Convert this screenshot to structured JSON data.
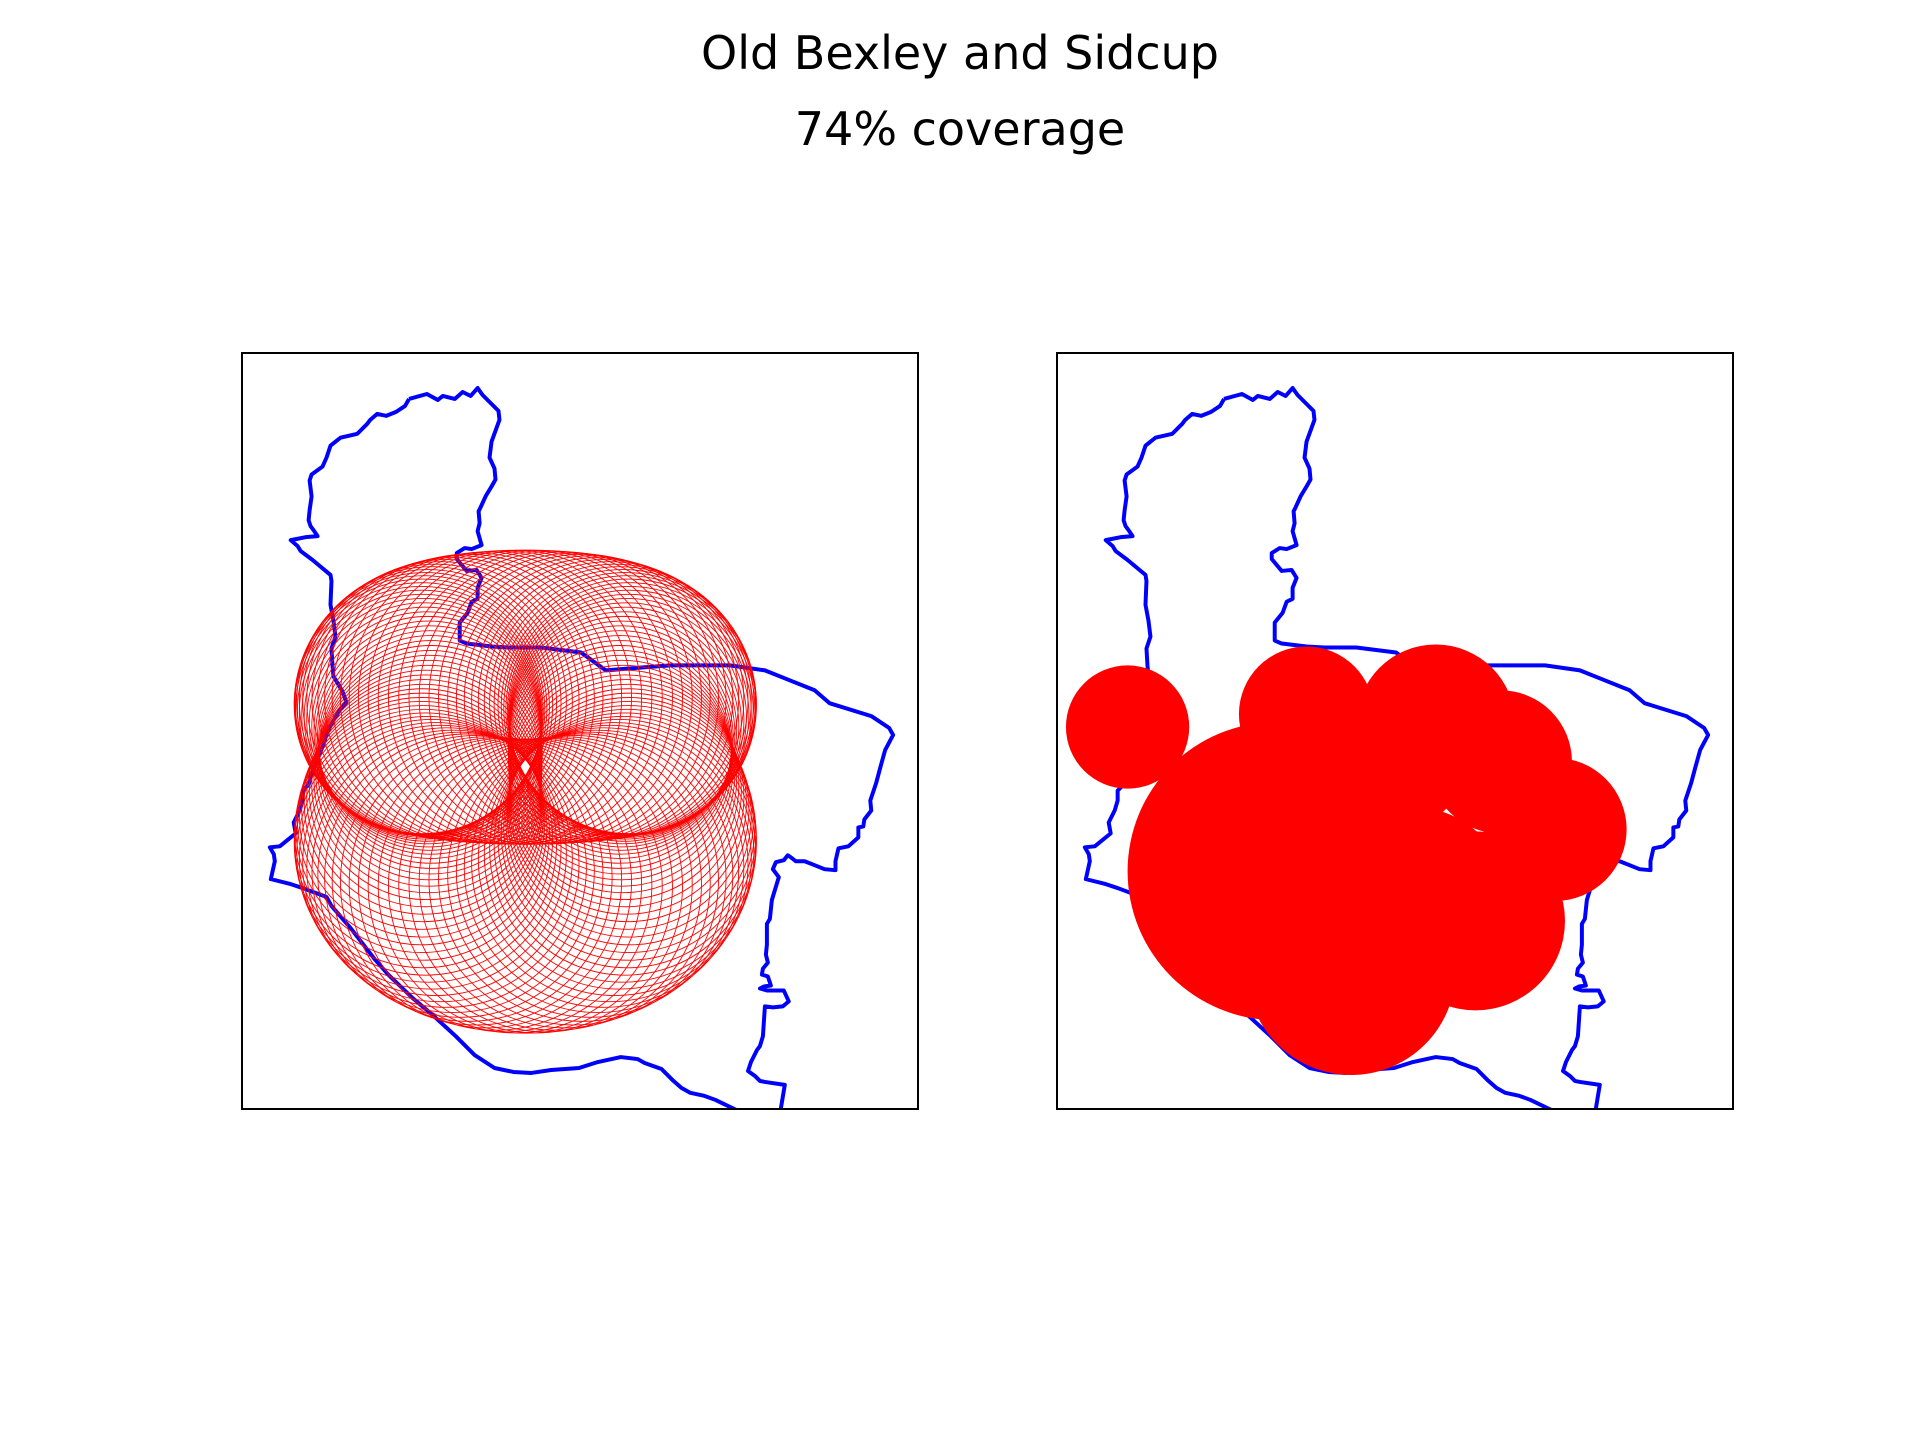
{
  "title": "Old Bexley and Sidcup",
  "subtitle": "74% coverage",
  "coverage_percent": 74,
  "colors": {
    "boundary": "#0000ff",
    "coverage": "#ff0000",
    "background": "#ffffff",
    "frame": "#000000"
  },
  "panels": [
    {
      "name": "individual-circles",
      "style": "outline-rings"
    },
    {
      "name": "merged-coverage",
      "style": "filled-union"
    }
  ]
}
